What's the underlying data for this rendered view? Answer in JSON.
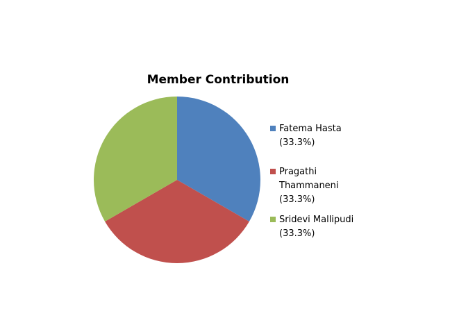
{
  "chart_data": {
    "type": "pie",
    "title": "Member Contribution",
    "slices": [
      {
        "name": "Fatema Hasta",
        "value": 33.3,
        "label": "(33.3%)",
        "color": "#4F81BD"
      },
      {
        "name": "Pragathi Thammaneni",
        "value": 33.3,
        "label": "(33.3%)",
        "color": "#C0504D"
      },
      {
        "name": "Sridevi Mallipudi",
        "value": 33.3,
        "label": "(33.3%)",
        "color": "#9BBB59"
      }
    ],
    "legend_position": "right"
  }
}
